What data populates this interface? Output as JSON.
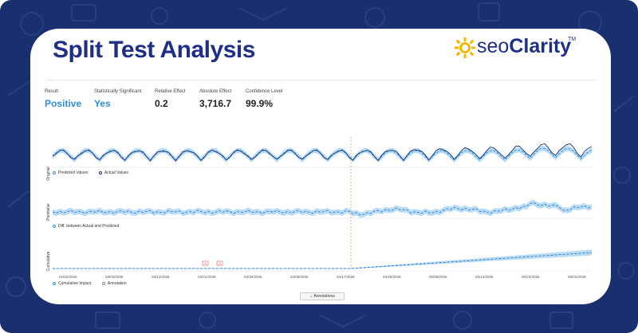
{
  "header": {
    "title": "Split Test Analysis",
    "logo_seo": "seo",
    "logo_clarity": "Clarity",
    "logo_tm": "TM"
  },
  "metrics": [
    {
      "label": "Result",
      "value": "Positive",
      "accent": true
    },
    {
      "label": "Statistically Significant",
      "value": "Yes",
      "accent": true
    },
    {
      "label": "Relative Effect",
      "value": "0.2",
      "accent": false
    },
    {
      "label": "Absolute Effect",
      "value": "3,716.7",
      "accent": false
    },
    {
      "label": "Confidence Level",
      "value": "99.9%",
      "accent": false
    }
  ],
  "colors": {
    "frame": "#1a2f6d",
    "title": "#1f2f86",
    "accent": "#2d8fd5",
    "band": "#b8dcf5",
    "actual": "#1f2f6d",
    "split_marker": "#e0a060"
  },
  "panels": {
    "original_label": "Original",
    "pointwise_label": "Pointwise",
    "cumulative_label": "Cumulative"
  },
  "legends": {
    "predicted": "Predicted Values",
    "actual": "Actual Values",
    "diff": "Diff. between Actual and Predicted",
    "cumulative": "Cumulative Impact",
    "annotation": "Annotation"
  },
  "annotations_button": "Annotations",
  "chart_data": {
    "type": "line",
    "x_ticks": [
      "02/22/2026",
      "03/03/2026",
      "03/12/2026",
      "03/21/2026",
      "03/30/2026",
      "04/08/2026",
      "04/17/2026",
      "04/26/2026",
      "05/05/2026",
      "05/14/2026",
      "05/23/2026",
      "06/01/2026"
    ]
  }
}
